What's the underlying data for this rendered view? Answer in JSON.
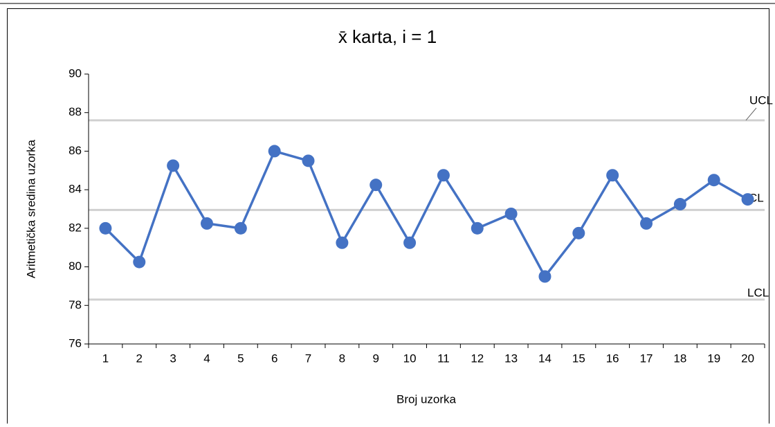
{
  "chart_data": {
    "type": "line",
    "title": "x̄ karta, i = 1",
    "xlabel": "Broj uzorka",
    "ylabel": "Aritmetička sredina uzorka",
    "categories": [
      "1",
      "2",
      "3",
      "4",
      "5",
      "6",
      "7",
      "8",
      "9",
      "10",
      "11",
      "12",
      "13",
      "14",
      "15",
      "16",
      "17",
      "18",
      "19",
      "20"
    ],
    "series": [
      {
        "color": "#4472c4",
        "values": [
          82,
          80.25,
          85.25,
          82.25,
          82,
          86,
          85.5,
          81.25,
          84.25,
          81.25,
          84.75,
          82,
          82.75,
          79.5,
          81.75,
          84.75,
          82.25,
          83.25,
          84.5,
          83.5
        ]
      }
    ],
    "control_lines": [
      {
        "label": "UCL",
        "value": 87.6,
        "color": "#d0d0d0"
      },
      {
        "label": "CL",
        "value": 82.95,
        "color": "#d0d0d0"
      },
      {
        "label": "LCL",
        "value": 78.3,
        "color": "#d0d0d0"
      }
    ],
    "ylim": [
      76,
      90
    ],
    "yticks": [
      76,
      78,
      80,
      82,
      84,
      86,
      88,
      90
    ]
  }
}
